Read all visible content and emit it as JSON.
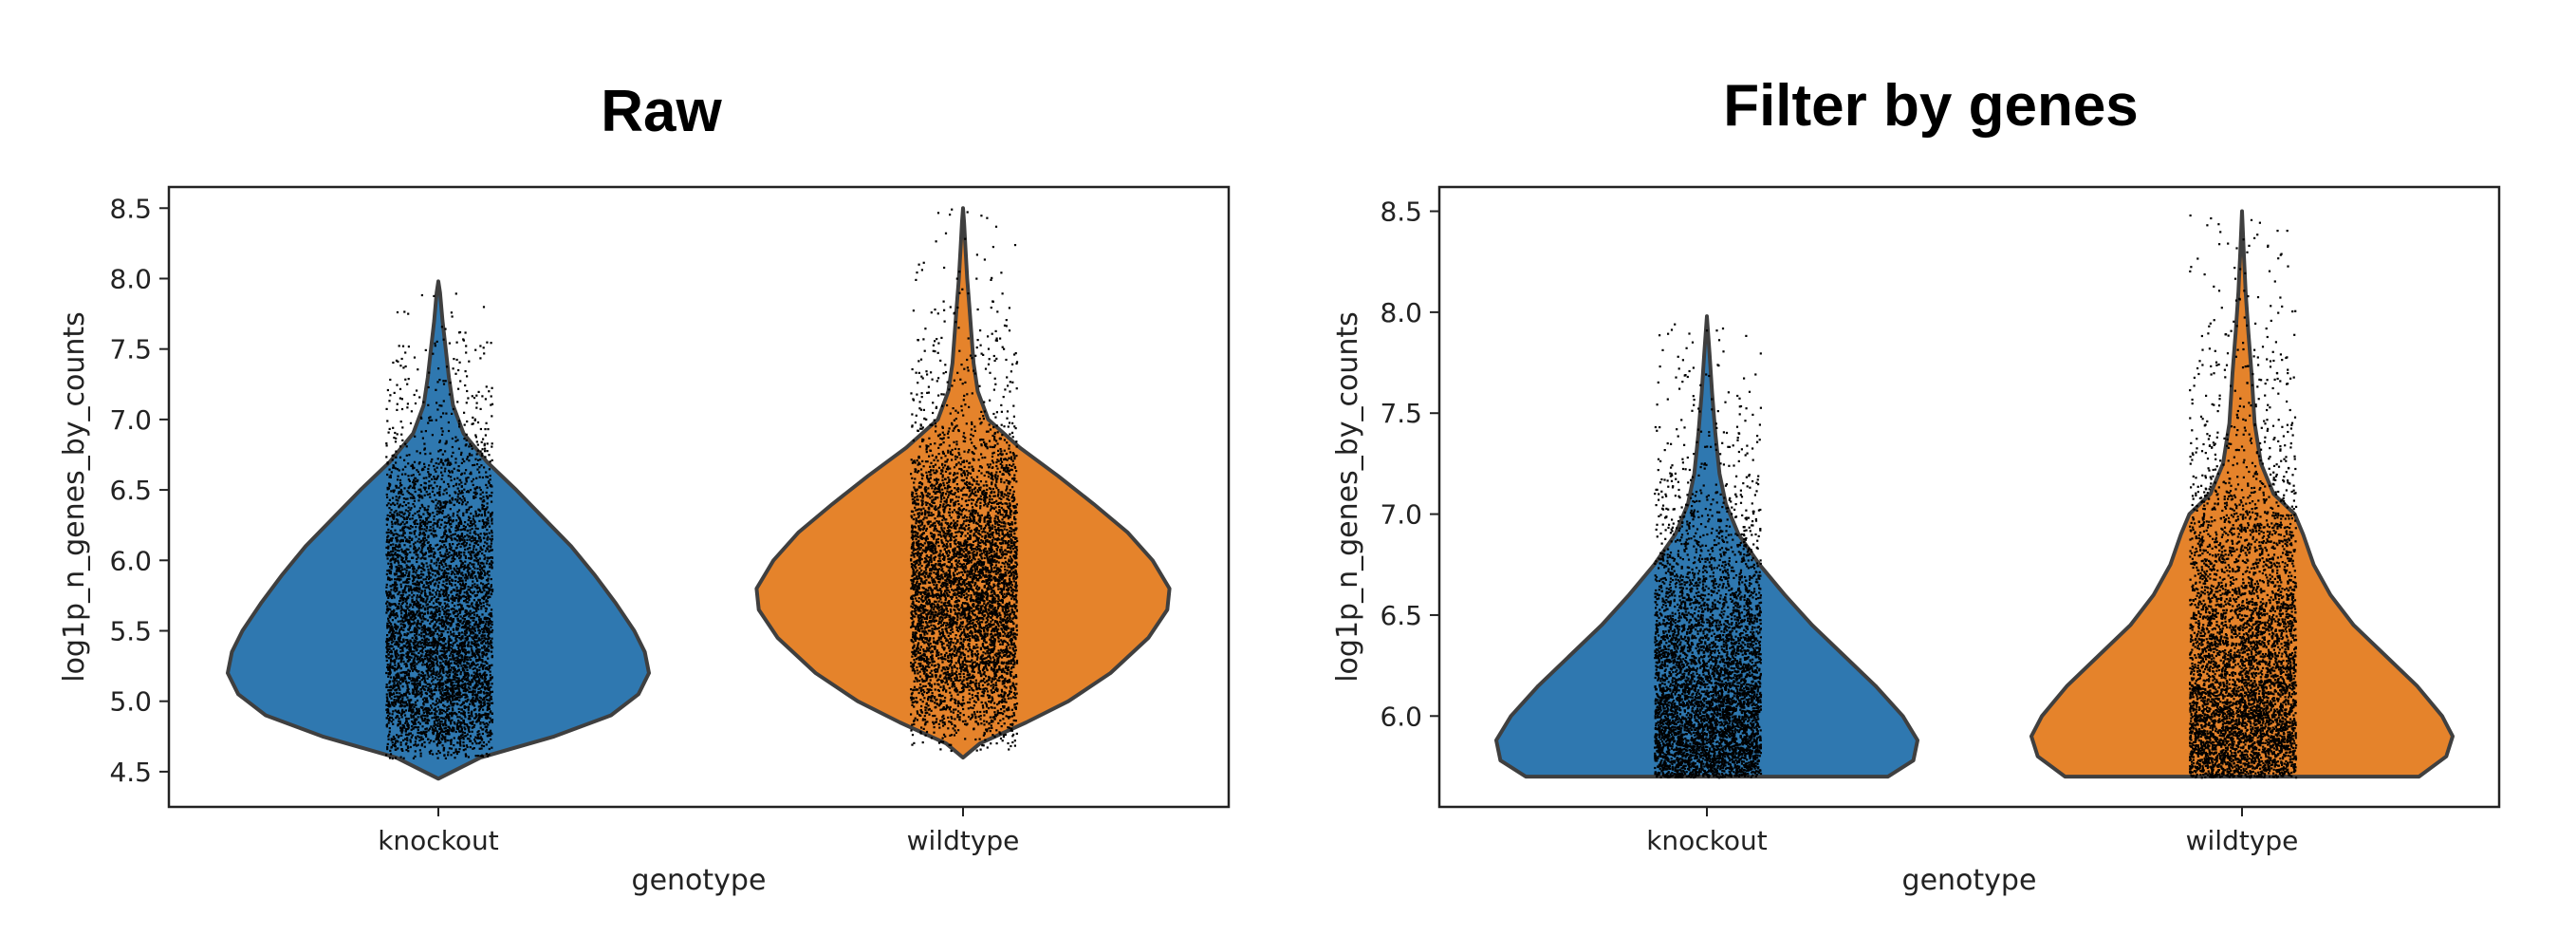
{
  "chart_data": [
    {
      "type": "violin",
      "title": "Raw",
      "xlabel": "genotype",
      "ylabel": "log1p_n_genes_by_counts",
      "categories": [
        "knockout",
        "wildtype"
      ],
      "ylim": [
        4.25,
        8.65
      ],
      "yticks": [
        "4.5",
        "5.0",
        "5.5",
        "6.0",
        "6.5",
        "7.0",
        "7.5",
        "8.0",
        "8.5"
      ],
      "series": [
        {
          "category": "knockout",
          "color": "#2f78b0",
          "min": 4.45,
          "max": 7.98,
          "jitter_min": 4.6,
          "jitter_max": 7.9,
          "density": [
            [
              4.45,
              0.0
            ],
            [
              4.6,
              0.2
            ],
            [
              4.75,
              0.55
            ],
            [
              4.9,
              0.82
            ],
            [
              5.05,
              0.95
            ],
            [
              5.2,
              1.0
            ],
            [
              5.35,
              0.98
            ],
            [
              5.5,
              0.93
            ],
            [
              5.7,
              0.84
            ],
            [
              5.9,
              0.74
            ],
            [
              6.1,
              0.63
            ],
            [
              6.3,
              0.5
            ],
            [
              6.5,
              0.37
            ],
            [
              6.7,
              0.23
            ],
            [
              6.9,
              0.12
            ],
            [
              7.1,
              0.07
            ],
            [
              7.3,
              0.05
            ],
            [
              7.5,
              0.035
            ],
            [
              7.7,
              0.02
            ],
            [
              7.9,
              0.008
            ],
            [
              7.98,
              0.0
            ]
          ]
        },
        {
          "category": "wildtype",
          "color": "#e5832b",
          "min": 4.6,
          "max": 8.5,
          "jitter_min": 4.65,
          "jitter_max": 8.5,
          "density": [
            [
              4.6,
              0.0
            ],
            [
              4.7,
              0.08
            ],
            [
              4.85,
              0.3
            ],
            [
              5.0,
              0.5
            ],
            [
              5.2,
              0.7
            ],
            [
              5.45,
              0.88
            ],
            [
              5.65,
              0.97
            ],
            [
              5.8,
              0.98
            ],
            [
              6.0,
              0.9
            ],
            [
              6.2,
              0.78
            ],
            [
              6.4,
              0.62
            ],
            [
              6.6,
              0.45
            ],
            [
              6.8,
              0.27
            ],
            [
              7.0,
              0.12
            ],
            [
              7.2,
              0.07
            ],
            [
              7.4,
              0.05
            ],
            [
              7.6,
              0.04
            ],
            [
              7.8,
              0.03
            ],
            [
              8.0,
              0.02
            ],
            [
              8.2,
              0.012
            ],
            [
              8.4,
              0.005
            ],
            [
              8.5,
              0.0
            ]
          ]
        }
      ]
    },
    {
      "type": "violin",
      "title": "Filter by genes",
      "xlabel": "genotype",
      "ylabel": "log1p_n_genes_by_counts",
      "categories": [
        "knockout",
        "wildtype"
      ],
      "ylim": [
        5.55,
        8.62
      ],
      "yticks": [
        "6.0",
        "6.5",
        "7.0",
        "7.5",
        "8.0",
        "8.5"
      ],
      "series": [
        {
          "category": "knockout",
          "color": "#2f78b0",
          "min": 5.7,
          "max": 7.98,
          "jitter_min": 5.7,
          "jitter_max": 7.95,
          "density": [
            [
              5.7,
              0.86
            ],
            [
              5.78,
              0.98
            ],
            [
              5.88,
              1.0
            ],
            [
              6.0,
              0.93
            ],
            [
              6.15,
              0.8
            ],
            [
              6.3,
              0.65
            ],
            [
              6.45,
              0.5
            ],
            [
              6.6,
              0.37
            ],
            [
              6.75,
              0.25
            ],
            [
              6.9,
              0.15
            ],
            [
              7.05,
              0.09
            ],
            [
              7.2,
              0.06
            ],
            [
              7.4,
              0.04
            ],
            [
              7.6,
              0.025
            ],
            [
              7.8,
              0.012
            ],
            [
              7.98,
              0.0
            ]
          ]
        },
        {
          "category": "wildtype",
          "color": "#e5832b",
          "min": 5.7,
          "max": 8.5,
          "jitter_min": 5.7,
          "jitter_max": 8.5,
          "density": [
            [
              5.7,
              0.84
            ],
            [
              5.8,
              0.97
            ],
            [
              5.9,
              1.0
            ],
            [
              6.0,
              0.95
            ],
            [
              6.15,
              0.83
            ],
            [
              6.3,
              0.68
            ],
            [
              6.45,
              0.53
            ],
            [
              6.6,
              0.42
            ],
            [
              6.75,
              0.34
            ],
            [
              6.9,
              0.29
            ],
            [
              7.0,
              0.25
            ],
            [
              7.1,
              0.15
            ],
            [
              7.25,
              0.09
            ],
            [
              7.45,
              0.06
            ],
            [
              7.7,
              0.045
            ],
            [
              7.9,
              0.03
            ],
            [
              8.1,
              0.017
            ],
            [
              8.3,
              0.008
            ],
            [
              8.5,
              0.0
            ]
          ]
        }
      ]
    }
  ]
}
